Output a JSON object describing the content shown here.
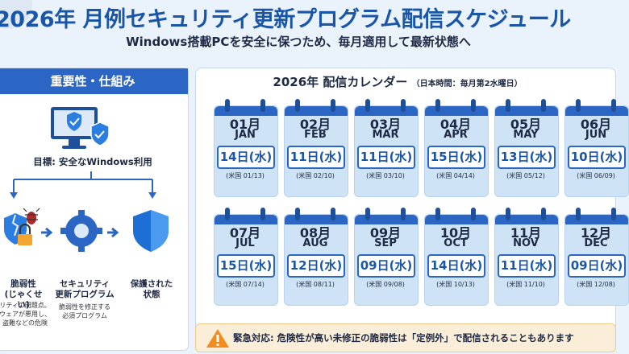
{
  "header": {
    "title": "2026年 月例セキュリティ更新プログラム配信スケジュール",
    "subtitle": "Windows搭載PCを安全に保つため、毎月適用して最新状態へ"
  },
  "left_panel": {
    "heading": "重要性・仕組み",
    "goal": "目標: 安全なWindows利用",
    "steps": [
      {
        "label": "脆弱性\n(じゃくせい)",
        "desc": "リティの問題点。\nウェアが悪用し、\n盗難などの危険"
      },
      {
        "label": "セキュリティ\n更新プログラム",
        "desc": "脆弱性を修正する\n必須プログラム"
      },
      {
        "label": "保護された\n状態",
        "desc": ""
      }
    ],
    "icons": [
      "monitor-icon",
      "shield-check-icon",
      "bug-icon",
      "lock-icon",
      "gear-icon",
      "shield-icon"
    ]
  },
  "calendar": {
    "title": "2026年 配信カレンダー",
    "note": "（日本時間：毎月第2水曜日）",
    "months": [
      {
        "num": "01月",
        "name": "JAN",
        "date": "14日(水)",
        "us": "(米国 01/13)"
      },
      {
        "num": "02月",
        "name": "FEB",
        "date": "11日(水)",
        "us": "(米国 02/10)"
      },
      {
        "num": "03月",
        "name": "MAR",
        "date": "11日(水)",
        "us": "(米国 03/10)"
      },
      {
        "num": "04月",
        "name": "APR",
        "date": "15日(水)",
        "us": "(米国 04/14)"
      },
      {
        "num": "05月",
        "name": "MAY",
        "date": "13日(水)",
        "us": "(米国 05/12)"
      },
      {
        "num": "06月",
        "name": "JUN",
        "date": "10日(水)",
        "us": "(米国 06/09)"
      },
      {
        "num": "07月",
        "name": "JUL",
        "date": "15日(水)",
        "us": "(米国 07/14)"
      },
      {
        "num": "08月",
        "name": "AUG",
        "date": "12日(水)",
        "us": "(米国 08/11)"
      },
      {
        "num": "09月",
        "name": "SEP",
        "date": "09日(水)",
        "us": "(米国 09/08)"
      },
      {
        "num": "10月",
        "name": "OCT",
        "date": "14日(水)",
        "us": "(米国 10/13)"
      },
      {
        "num": "11月",
        "name": "NOV",
        "date": "11日(水)",
        "us": "(米国 11/10)"
      },
      {
        "num": "12月",
        "name": "DEC",
        "date": "09日(水)",
        "us": "(米国 12/08)"
      }
    ]
  },
  "alert": {
    "icon": "warning-icon",
    "text": "緊急対応: 危険性が高い未修正の脆弱性は「定例外」で配信されることもあります"
  },
  "colors": {
    "accent": "#2b66c4",
    "title": "#1a56a8",
    "bg": "#eaf2fb",
    "warning": "#f28c1c"
  }
}
